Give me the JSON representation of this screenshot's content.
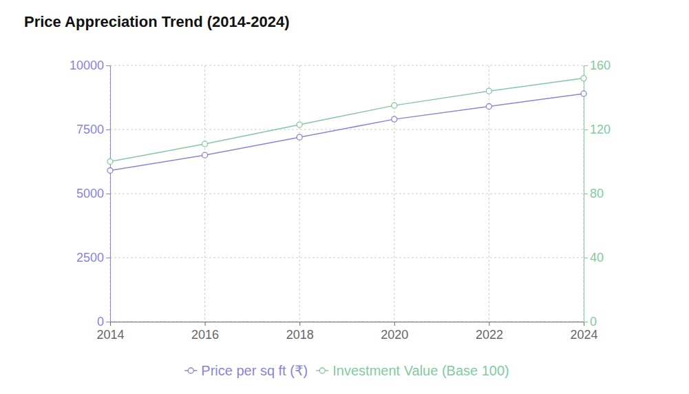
{
  "chart_data": {
    "type": "line",
    "title": "Price Appreciation Trend (2014-2024)",
    "categories": [
      "2014",
      "2016",
      "2018",
      "2020",
      "2022",
      "2024"
    ],
    "series": [
      {
        "name": "Price per sq ft (₹)",
        "color": "#8884d8",
        "marker": "circle",
        "values": [
          5900,
          6500,
          7200,
          7900,
          8400,
          8900
        ]
      },
      {
        "name": "Investment Value (Base 100)",
        "color": "#82ca9d",
        "marker": "circle",
        "axis": "y2",
        "values": [
          100,
          111,
          123,
          135,
          144,
          152
        ]
      }
    ],
    "ylim": [
      0,
      10000
    ],
    "yticks": [
      0,
      2500,
      5000,
      7500,
      10000
    ],
    "y2lim": [
      0,
      160
    ],
    "y2ticks": [
      0,
      40,
      80,
      120,
      160
    ],
    "grid": true,
    "legend": "bottom"
  }
}
